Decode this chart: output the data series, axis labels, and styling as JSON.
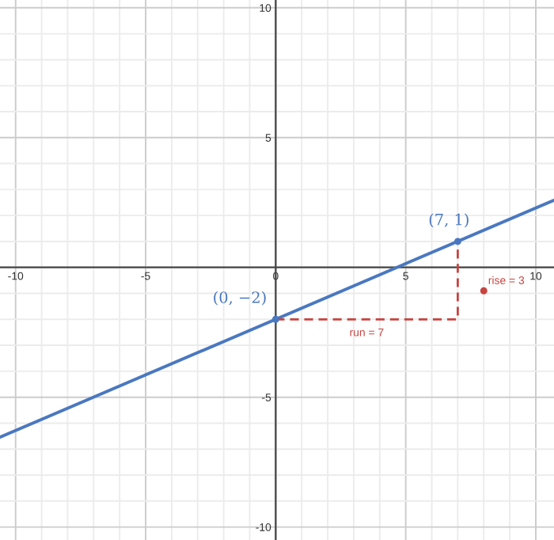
{
  "chart_data": {
    "type": "line",
    "xlim": [
      -10.6,
      10.7
    ],
    "ylim": [
      -10.5,
      10.3
    ],
    "xticks": [
      {
        "value": -10,
        "label": "-10"
      },
      {
        "value": -9,
        "label": null
      },
      {
        "value": -8,
        "label": null
      },
      {
        "value": -7,
        "label": null
      },
      {
        "value": -6,
        "label": null
      },
      {
        "value": -5,
        "label": "-5"
      },
      {
        "value": -4,
        "label": null
      },
      {
        "value": -3,
        "label": null
      },
      {
        "value": -2,
        "label": null
      },
      {
        "value": -1,
        "label": null
      },
      0,
      {
        "value": 1,
        "label": null
      },
      {
        "value": 2,
        "label": null
      },
      {
        "value": 3,
        "label": null
      },
      {
        "value": 4,
        "label": null
      },
      5,
      {
        "value": 6,
        "label": null
      },
      {
        "value": 7,
        "label": null
      },
      {
        "value": 8,
        "label": null
      },
      {
        "value": 9,
        "label": null
      },
      10
    ],
    "yticks": [
      {
        "value": -10,
        "label": "-10"
      },
      {
        "value": -9,
        "label": null
      },
      {
        "value": -8,
        "label": null
      },
      {
        "value": -7,
        "label": null
      },
      {
        "value": -6,
        "label": null
      },
      {
        "value": -5,
        "label": "-5"
      },
      {
        "value": -4,
        "label": null
      },
      {
        "value": -3,
        "label": null
      },
      {
        "value": -2,
        "label": null
      },
      {
        "value": -1,
        "label": null
      },
      {
        "value": 0,
        "label": null
      },
      {
        "value": 1,
        "label": null
      },
      {
        "value": 2,
        "label": null
      },
      {
        "value": 3,
        "label": null
      },
      {
        "value": 4,
        "label": null
      },
      5,
      {
        "value": 6,
        "label": null
      },
      {
        "value": 7,
        "label": null
      },
      {
        "value": 8,
        "label": null
      },
      {
        "value": 9,
        "label": null
      },
      10
    ],
    "grid": true,
    "series": [
      {
        "color": "#4a78c0",
        "x": [
          -10.6,
          10.7
        ],
        "values": [
          -6.54,
          2.59
        ],
        "line_style": "solid",
        "marker": "none"
      },
      {
        "color": "#c74440",
        "x": [
          0,
          7,
          7
        ],
        "values": [
          -2,
          -2,
          1
        ],
        "line_style": "dashed",
        "marker": "none"
      },
      {
        "type": "scatter",
        "color": "#4a78c0",
        "x": [
          0,
          7
        ],
        "values": [
          -2,
          1
        ],
        "marker": "circle"
      },
      {
        "type": "scatter",
        "color": "#c74440",
        "x": [
          8
        ],
        "values": [
          -0.9
        ],
        "marker": "circle"
      }
    ],
    "annotations": [
      {
        "text": "(0, −2)",
        "x": 0,
        "y": -2
      },
      {
        "text": "(7, 1)",
        "x": 7,
        "y": 1
      },
      {
        "text": "run = 7",
        "x": 3.5,
        "y": -2
      },
      {
        "text": "rise = 3",
        "x": 8,
        "y": -0.9
      }
    ]
  }
}
